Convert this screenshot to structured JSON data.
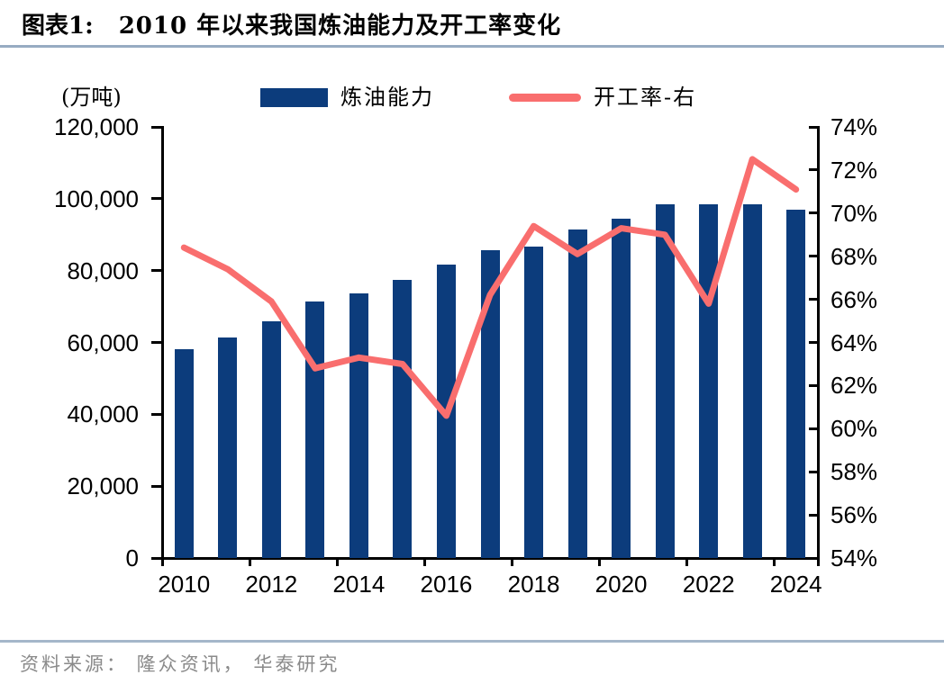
{
  "header": {
    "figure_label": "图表1:",
    "title": "2010 年以来我国炼油能力及开工率变化"
  },
  "legend": {
    "unit_label": "(万吨)",
    "items": [
      {
        "label": "炼油能力",
        "type": "bar"
      },
      {
        "label": "开工率-右",
        "type": "line"
      }
    ]
  },
  "footer": {
    "source": "资料来源： 隆众资讯， 华泰研究"
  },
  "colors": {
    "bar": "#0c3c7c",
    "line": "#f96e6e",
    "axis": "#000000",
    "title_rule": "#97abc2",
    "footer_rule": "#a5b7ca",
    "source_text": "#8a8a8a"
  },
  "chart_data": {
    "type": "bar",
    "title": "2010 年以来我国炼油能力及开工率变化",
    "categories": [
      2010,
      2011,
      2012,
      2013,
      2014,
      2015,
      2016,
      2017,
      2018,
      2019,
      2020,
      2021,
      2022,
      2023,
      2024
    ],
    "x_tick_labels": [
      "2010",
      "2012",
      "2014",
      "2016",
      "2018",
      "2020",
      "2022",
      "2024"
    ],
    "series": [
      {
        "name": "炼油能力",
        "type": "bar",
        "axis": "left",
        "unit": "万吨",
        "values": [
          58000,
          61400,
          66000,
          71400,
          73600,
          77400,
          81700,
          85600,
          86800,
          91500,
          94500,
          98400,
          98400,
          98400,
          96900
        ]
      },
      {
        "name": "开工率-右",
        "type": "line",
        "axis": "right",
        "unit": "%",
        "values": [
          68.4,
          67.4,
          65.9,
          62.8,
          63.3,
          63.0,
          60.6,
          66.2,
          69.4,
          68.1,
          69.3,
          69.0,
          65.8,
          72.5,
          71.1
        ]
      }
    ],
    "left_axis": {
      "label": "(万吨)",
      "min": 0,
      "max": 120000,
      "step": 20000,
      "tick_labels": [
        "0",
        "20,000",
        "40,000",
        "60,000",
        "80,000",
        "100,000",
        "120,000"
      ]
    },
    "right_axis": {
      "label": "开工率",
      "min": 54,
      "max": 74,
      "step": 2,
      "tick_labels": [
        "54%",
        "56%",
        "58%",
        "60%",
        "62%",
        "64%",
        "66%",
        "68%",
        "70%",
        "72%",
        "74%"
      ]
    },
    "grid": false,
    "legend_position": "top"
  }
}
